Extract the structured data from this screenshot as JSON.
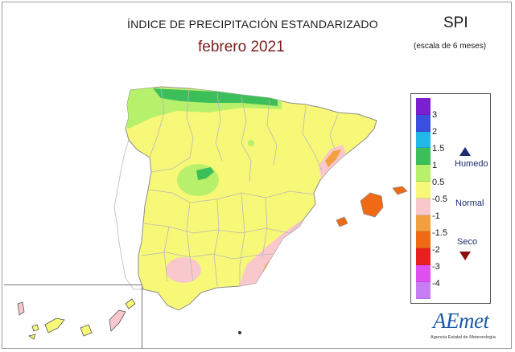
{
  "header": {
    "title": "ÍNDICE DE PRECIPITACIÓN ESTANDARIZADO",
    "subtitle": "febrero 2021",
    "index_name": "SPI",
    "scale_note": "(escala de 6 meses)"
  },
  "legend": {
    "ticks": [
      "3",
      "2",
      "1.5",
      "1",
      "0.5",
      "-0.5",
      "-1",
      "-1.5",
      "-2",
      "-3",
      "-4"
    ],
    "colors": [
      "#7b1fd1",
      "#3a4fe0",
      "#1fb8e8",
      "#3cbf5a",
      "#b7f06a",
      "#f8f878",
      "#f8c8cc",
      "#f5a040",
      "#f06a16",
      "#e82020",
      "#e050f0",
      "#c77ef5"
    ],
    "categories": {
      "humid": "Humedo",
      "normal": "Normal",
      "dry": "Seco"
    },
    "humid_color": "#1c2c6e",
    "dry_color": "#8b1010"
  },
  "logo": {
    "word": "AEmet",
    "tagline": "Agencia Estatal de Meteorología"
  }
}
